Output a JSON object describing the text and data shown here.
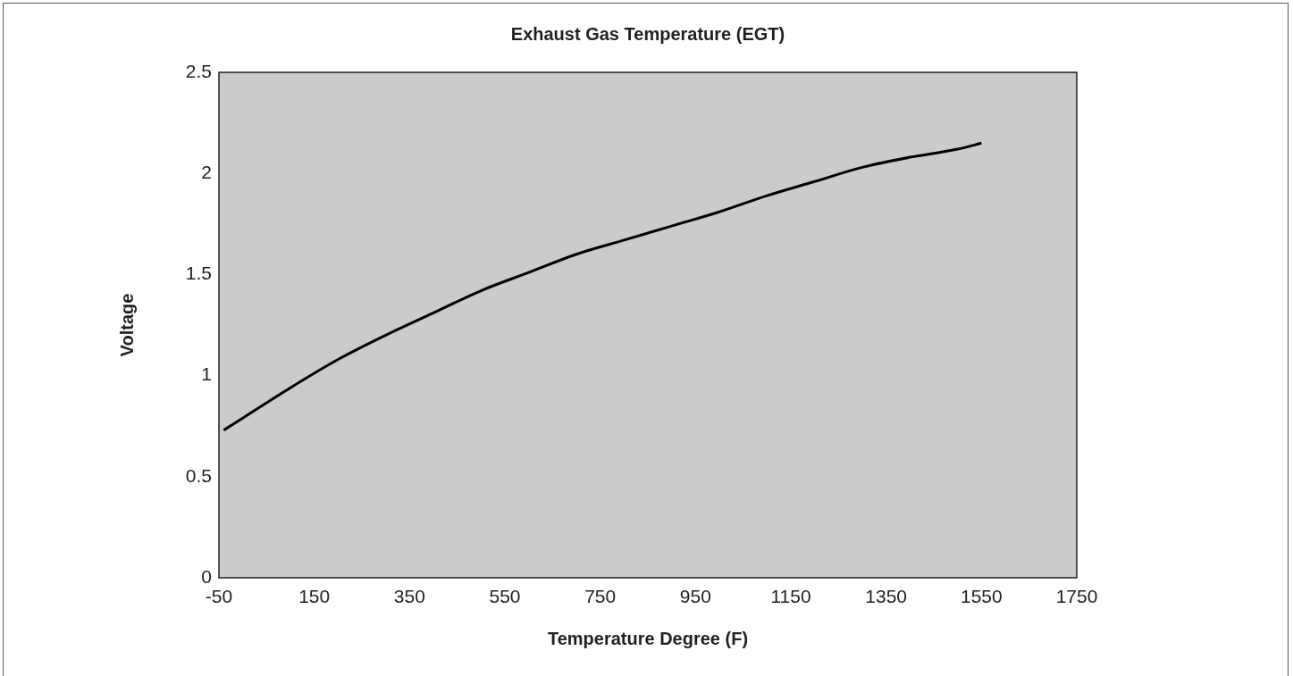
{
  "chart_data": {
    "type": "line",
    "title": "Exhaust Gas Temperature (EGT)",
    "xlabel": "Temperature Degree (F)",
    "ylabel": "Voltage",
    "x": [
      -40,
      0,
      100,
      200,
      300,
      400,
      500,
      600,
      700,
      800,
      900,
      1000,
      1100,
      1200,
      1300,
      1400,
      1500,
      1550
    ],
    "series": [
      {
        "color": "#000000",
        "values": [
          0.73,
          0.79,
          0.94,
          1.08,
          1.2,
          1.31,
          1.42,
          1.51,
          1.6,
          1.67,
          1.74,
          1.81,
          1.89,
          1.96,
          2.03,
          2.08,
          2.12,
          2.15
        ]
      }
    ],
    "xlim": [
      -50,
      1750
    ],
    "xticks": [
      -50,
      150,
      350,
      550,
      750,
      950,
      1150,
      1350,
      1550,
      1750
    ],
    "ylim": [
      0,
      2.5
    ],
    "yticks": [
      0,
      0.5,
      1,
      1.5,
      2,
      2.5
    ]
  }
}
